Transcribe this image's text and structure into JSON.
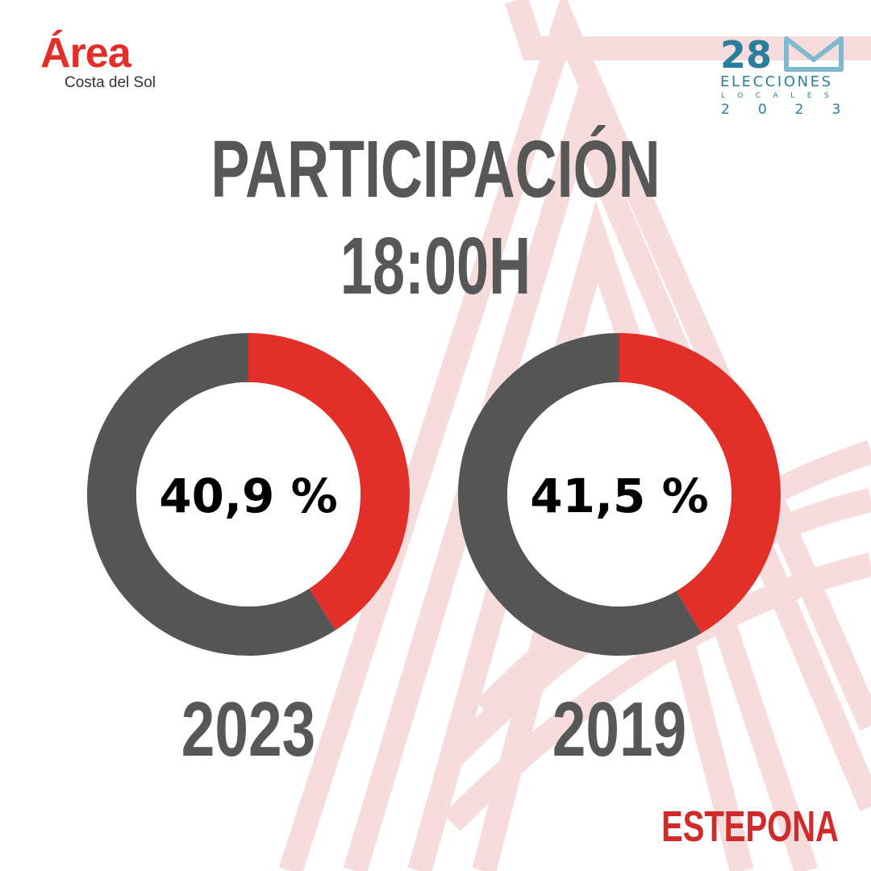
{
  "brand": {
    "name": "Área",
    "sub": "Costa del Sol"
  },
  "election": {
    "day": "28",
    "word": "ELECCIONES",
    "sub": "LOCALES",
    "year": "2023"
  },
  "title": {
    "line1": "PARTICIPACIÓN",
    "line2": "18:00H"
  },
  "location": "ESTEPONA",
  "colors": {
    "accent": "#e32f29",
    "remainder": "#555555",
    "text": "#575757",
    "teal": "#2a7e9c"
  },
  "chart_data": {
    "type": "pie",
    "variant": "donut",
    "title": "PARTICIPACIÓN 18:00H",
    "series": [
      {
        "name": "2023",
        "value": 40.9,
        "label": "40,9 %"
      },
      {
        "name": "2019",
        "value": 41.5,
        "label": "41,5 %"
      }
    ],
    "max": 100
  }
}
